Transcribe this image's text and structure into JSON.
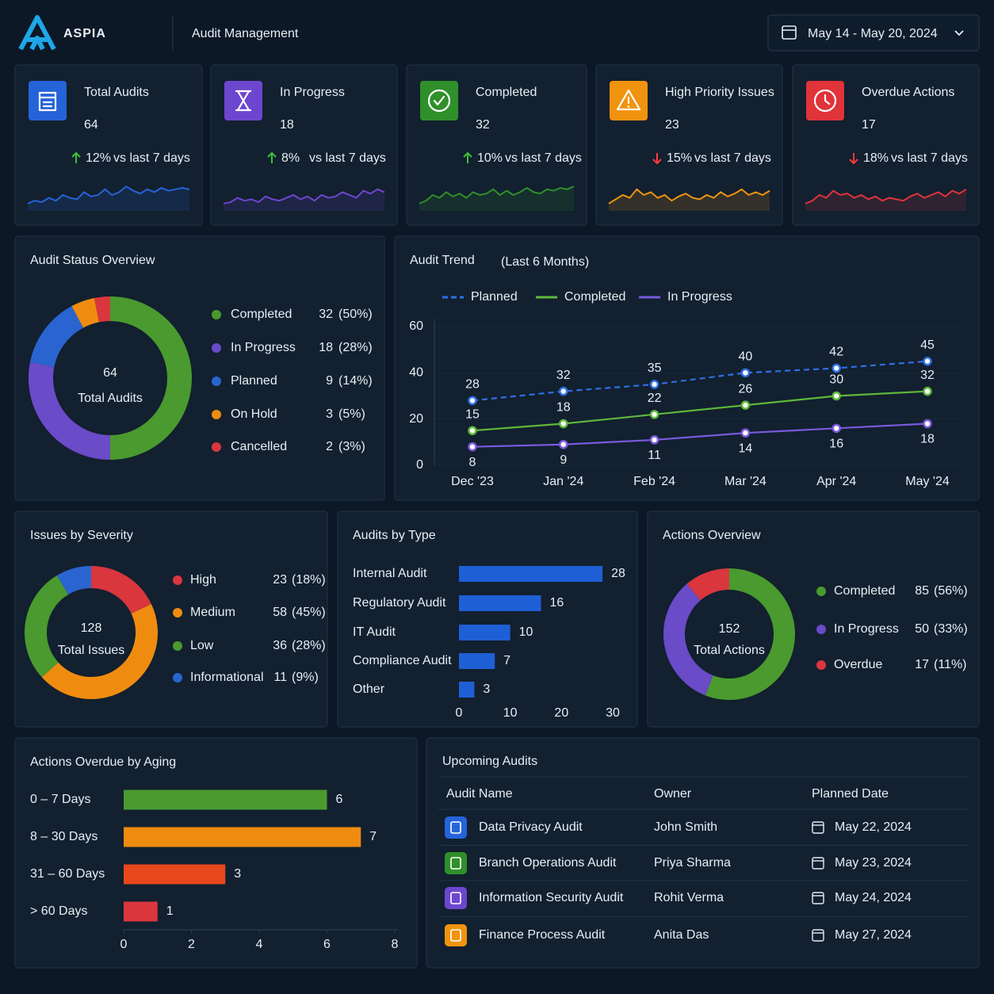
{
  "header": {
    "logo": "ASPIA",
    "title": "Audit Management",
    "date_range": "May 14 - May 20, 2024"
  },
  "kpis": [
    {
      "label": "Total Audits",
      "value": 64,
      "change": "12%",
      "direction": "up",
      "comparison": "vs last 7 days",
      "color": "#2563d9",
      "sparkline": {
        "values": [
          2,
          3,
          2.5,
          4,
          3,
          5,
          4,
          3.5,
          6,
          4.5,
          5,
          7,
          5,
          6,
          8,
          6.5,
          5.5,
          7,
          6,
          7.5,
          6.5,
          7,
          7.5,
          7
        ],
        "ylim": [
          0,
          10
        ]
      }
    },
    {
      "label": "In Progress",
      "value": 18,
      "change": "8%",
      "direction": "up",
      "comparison": "vs last 7 days",
      "color": "#6d46cf",
      "sparkline": {
        "values": [
          2,
          2.5,
          4,
          3,
          3.5,
          2.5,
          4.5,
          3.5,
          3,
          4,
          5,
          3.5,
          4.5,
          3,
          5,
          4,
          4.5,
          6,
          5,
          4,
          6.5,
          5.5,
          7,
          6
        ],
        "ylim": [
          0,
          10
        ]
      }
    },
    {
      "label": "Completed",
      "value": 32,
      "change": "10%",
      "direction": "up",
      "comparison": "vs last 7 days",
      "color": "#2f8f2a",
      "sparkline": {
        "values": [
          2,
          3,
          5,
          4,
          6,
          4.5,
          5.5,
          4,
          6,
          5,
          5.5,
          7,
          5,
          6.5,
          5,
          6,
          7.5,
          6,
          5.5,
          7,
          6.5,
          7.5,
          7,
          8
        ],
        "ylim": [
          0,
          10
        ]
      }
    },
    {
      "label": "High Priority Issues",
      "value": 23,
      "change": "15%",
      "direction": "down",
      "comparison": "vs last 7 days",
      "color": "#f0930f",
      "sparkline": {
        "values": [
          2,
          3.5,
          5,
          4,
          7,
          5,
          6,
          4,
          5,
          3,
          4.5,
          5.5,
          4,
          3.5,
          5,
          4,
          6,
          4.5,
          5.5,
          7,
          5,
          6,
          5,
          6.5
        ],
        "ylim": [
          0,
          10
        ]
      }
    },
    {
      "label": "Overdue Actions",
      "value": 17,
      "change": "18%",
      "direction": "down",
      "comparison": "vs last 7 days",
      "color": "#e0333a",
      "sparkline": {
        "values": [
          2,
          3,
          5,
          4,
          6.5,
          5,
          5.5,
          4,
          5,
          3.5,
          4.5,
          3,
          4,
          3.5,
          3,
          4.5,
          5.5,
          4,
          5,
          6,
          4.5,
          6.5,
          5.5,
          7
        ],
        "ylim": [
          0,
          10
        ]
      }
    }
  ],
  "chart_data": [
    {
      "type": "donut",
      "title": "Audit Status Overview",
      "center_value": 64,
      "center_label": "Total Audits",
      "categories": [
        "Completed",
        "In Progress",
        "Planned",
        "On Hold",
        "Cancelled"
      ],
      "values": [
        32,
        18,
        9,
        3,
        2
      ],
      "percent_labels": [
        "(50%)",
        "(28%)",
        "(14%)",
        "(5%)",
        "(3%)"
      ],
      "colors": [
        "#4a9a2f",
        "#6a4bc8",
        "#2a64d0",
        "#ef8c10",
        "#d9363e"
      ]
    },
    {
      "type": "line",
      "title": "Audit Trend",
      "subtitle": "(Last 6 Months)",
      "categories": [
        "Dec '23",
        "Jan '24",
        "Feb '24",
        "Mar '24",
        "Apr '24",
        "May '24"
      ],
      "series": [
        {
          "name": "Planned",
          "color": "#2f6fe6",
          "dash": true,
          "values": [
            28,
            32,
            35,
            40,
            42,
            45
          ]
        },
        {
          "name": "Completed",
          "color": "#5fb83a",
          "values": [
            15,
            18,
            22,
            26,
            30,
            32
          ]
        },
        {
          "name": "In Progress",
          "color": "#7a5ae0",
          "values": [
            8,
            9,
            11,
            14,
            16,
            18
          ]
        }
      ],
      "ylim": [
        0,
        60
      ],
      "yticks": [
        0,
        20,
        40,
        60
      ],
      "grid": true
    },
    {
      "type": "donut",
      "title": "Issues by Severity",
      "center_value": 128,
      "center_label": "Total Issues",
      "categories": [
        "High",
        "Medium",
        "Low",
        "Informational"
      ],
      "values": [
        23,
        58,
        36,
        11
      ],
      "percent_labels": [
        "(18%)",
        "(45%)",
        "(28%)",
        "(9%)"
      ],
      "colors": [
        "#d9363e",
        "#ef8c10",
        "#4a9a2f",
        "#2a64d0"
      ]
    },
    {
      "type": "hbar",
      "title": "Audits by Type",
      "categories": [
        "Internal Audit",
        "Regulatory Audit",
        "IT Audit",
        "Compliance Audit",
        "Other"
      ],
      "values": [
        28,
        16,
        10,
        7,
        3
      ],
      "color": "#1f5fd6",
      "xlim": [
        0,
        30
      ],
      "xticks": [
        0,
        10,
        20,
        30
      ]
    },
    {
      "type": "donut",
      "title": "Actions Overview",
      "center_value": 152,
      "center_label": "Total Actions",
      "categories": [
        "Completed",
        "In Progress",
        "Overdue"
      ],
      "values": [
        85,
        50,
        17
      ],
      "percent_labels": [
        "(56%)",
        "(33%)",
        "(11%)"
      ],
      "colors": [
        "#4a9a2f",
        "#6a4bc8",
        "#d9363e"
      ]
    },
    {
      "type": "hbar",
      "title": "Actions Overdue by Aging",
      "categories": [
        "0 – 7 Days",
        "8 – 30 Days",
        "31 – 60 Days",
        "> 60 Days"
      ],
      "values": [
        6,
        7,
        3,
        1
      ],
      "colors": [
        "#4a9a2f",
        "#ef8c10",
        "#e8481c",
        "#d9363e"
      ],
      "xlim": [
        0,
        8
      ],
      "xticks": [
        0,
        2,
        4,
        6,
        8
      ]
    }
  ],
  "table": {
    "title": "Upcoming Audits",
    "columns": [
      "Audit Name",
      "Owner",
      "Planned Date"
    ],
    "rows": [
      [
        "Data Privacy Audit",
        "John Smith",
        "May 22, 2024"
      ],
      [
        "Branch Operations Audit",
        "Priya Sharma",
        "May 23, 2024"
      ],
      [
        "Information Security Audit",
        "Rohit Verma",
        "May 24, 2024"
      ],
      [
        "Finance Process Audit",
        "Anita Das",
        "May 27, 2024"
      ]
    ],
    "row_colors": [
      "#2563d9",
      "#2f8f2a",
      "#6d46cf",
      "#f0930f"
    ]
  }
}
